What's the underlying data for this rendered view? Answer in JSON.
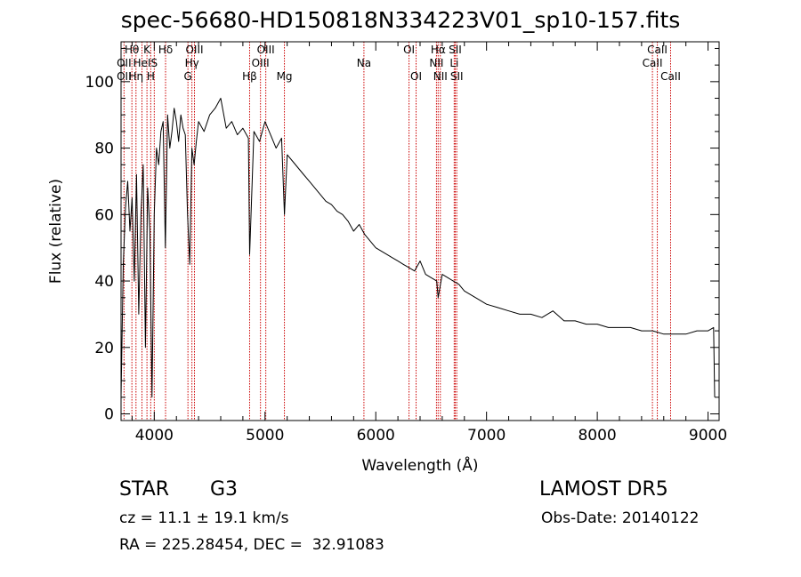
{
  "figure": {
    "title": "spec-56680-HD150818N334223V01_sp10-157.fits",
    "object_class": "STAR",
    "object_subclass": "G3",
    "survey": "LAMOST DR5",
    "velocity": "cz = 11.1 ± 19.1 km/s",
    "obs_date": "Obs-Date: 20140122",
    "coords": "RA = 225.28454, DEC =  32.91083"
  },
  "chart_data": {
    "type": "line",
    "title": "spec-56680-HD150818N334223V01_sp10-157.fits",
    "xlabel": "Wavelength (Å)",
    "ylabel": "Flux (relative)",
    "xlim": [
      3700,
      9100
    ],
    "ylim": [
      -2,
      112
    ],
    "xticks": [
      4000,
      5000,
      6000,
      7000,
      8000,
      9000
    ],
    "xtick_labels": [
      "4000",
      "5000",
      "6000",
      "7000",
      "8000",
      "9000"
    ],
    "yticks": [
      0,
      20,
      40,
      60,
      80,
      100
    ],
    "ytick_labels": [
      "0",
      "20",
      "40",
      "60",
      "80",
      "100"
    ],
    "grid": false,
    "line_color": "#000000",
    "marker_color": "#cc0000",
    "series": [
      {
        "x": [
          3700,
          3720,
          3740,
          3760,
          3780,
          3800,
          3820,
          3840,
          3860,
          3880,
          3900,
          3920,
          3940,
          3960,
          3980,
          4000,
          4020,
          4040,
          4060,
          4080,
          4100,
          4120,
          4140,
          4160,
          4180,
          4200,
          4220,
          4240,
          4260,
          4280,
          4300,
          4320,
          4340,
          4360,
          4380,
          4400,
          4450,
          4500,
          4550,
          4600,
          4650,
          4700,
          4750,
          4800,
          4850,
          4861,
          4900,
          4950,
          5000,
          5050,
          5100,
          5150,
          5175,
          5200,
          5250,
          5300,
          5350,
          5400,
          5450,
          5500,
          5550,
          5600,
          5650,
          5700,
          5750,
          5800,
          5850,
          5900,
          5950,
          6000,
          6050,
          6100,
          6150,
          6200,
          6250,
          6300,
          6350,
          6400,
          6450,
          6500,
          6550,
          6563,
          6600,
          6650,
          6700,
          6750,
          6800,
          6900,
          7000,
          7100,
          7200,
          7300,
          7400,
          7500,
          7600,
          7700,
          7800,
          7900,
          8000,
          8100,
          8200,
          8300,
          8400,
          8500,
          8600,
          8700,
          8800,
          8900,
          9000,
          9050,
          9060
        ],
        "y": [
          5,
          45,
          62,
          70,
          55,
          65,
          40,
          72,
          30,
          60,
          75,
          20,
          68,
          55,
          5,
          60,
          80,
          75,
          85,
          88,
          50,
          90,
          80,
          85,
          92,
          88,
          82,
          90,
          86,
          84,
          60,
          45,
          80,
          75,
          82,
          88,
          85,
          90,
          92,
          95,
          86,
          88,
          84,
          86,
          83,
          48,
          85,
          82,
          88,
          84,
          80,
          83,
          60,
          78,
          76,
          74,
          72,
          70,
          68,
          66,
          64,
          63,
          61,
          60,
          58,
          55,
          57,
          54,
          52,
          50,
          49,
          48,
          47,
          46,
          45,
          44,
          43,
          46,
          42,
          41,
          40,
          35,
          42,
          41,
          40,
          39,
          37,
          35,
          33,
          32,
          31,
          30,
          30,
          29,
          31,
          28,
          28,
          27,
          27,
          26,
          26,
          26,
          25,
          25,
          24,
          24,
          24,
          25,
          25,
          26,
          5
        ]
      }
    ],
    "annotations": [
      {
        "label": "Hθ",
        "x": 3798,
        "row": 1
      },
      {
        "label": "K",
        "x": 3934,
        "row": 1
      },
      {
        "label": "Hδ",
        "x": 4102,
        "row": 1
      },
      {
        "label": "OIII",
        "x": 4363,
        "row": 1
      },
      {
        "label": "OIII",
        "x": 5007,
        "row": 1
      },
      {
        "label": "OI",
        "x": 6300,
        "row": 1
      },
      {
        "label": "Hα",
        "x": 6563,
        "row": 1
      },
      {
        "label": "SII",
        "x": 6717,
        "row": 1
      },
      {
        "label": "CaII",
        "x": 8542,
        "row": 1
      },
      {
        "label": "OII",
        "x": 3727,
        "row": 2
      },
      {
        "label": "HeI",
        "x": 3889,
        "row": 2
      },
      {
        "label": "S",
        "x": 4000,
        "row": 2
      },
      {
        "label": "Hγ",
        "x": 4340,
        "row": 2
      },
      {
        "label": "OIII",
        "x": 4959,
        "row": 2
      },
      {
        "label": "Na",
        "x": 5893,
        "row": 2
      },
      {
        "label": "NII",
        "x": 6548,
        "row": 2
      },
      {
        "label": "Li",
        "x": 6708,
        "row": 2
      },
      {
        "label": "CaII",
        "x": 8498,
        "row": 2
      },
      {
        "label": "OII",
        "x": 3727,
        "row": 3
      },
      {
        "label": "Hη",
        "x": 3835,
        "row": 3
      },
      {
        "label": "H",
        "x": 3968,
        "row": 3
      },
      {
        "label": "G",
        "x": 4304,
        "row": 3
      },
      {
        "label": "Hβ",
        "x": 4861,
        "row": 3
      },
      {
        "label": "Mg",
        "x": 5175,
        "row": 3
      },
      {
        "label": "OI",
        "x": 6364,
        "row": 3
      },
      {
        "label": "NII",
        "x": 6583,
        "row": 3
      },
      {
        "label": "SII",
        "x": 6731,
        "row": 3
      },
      {
        "label": "CaII",
        "x": 8662,
        "row": 3
      }
    ]
  }
}
